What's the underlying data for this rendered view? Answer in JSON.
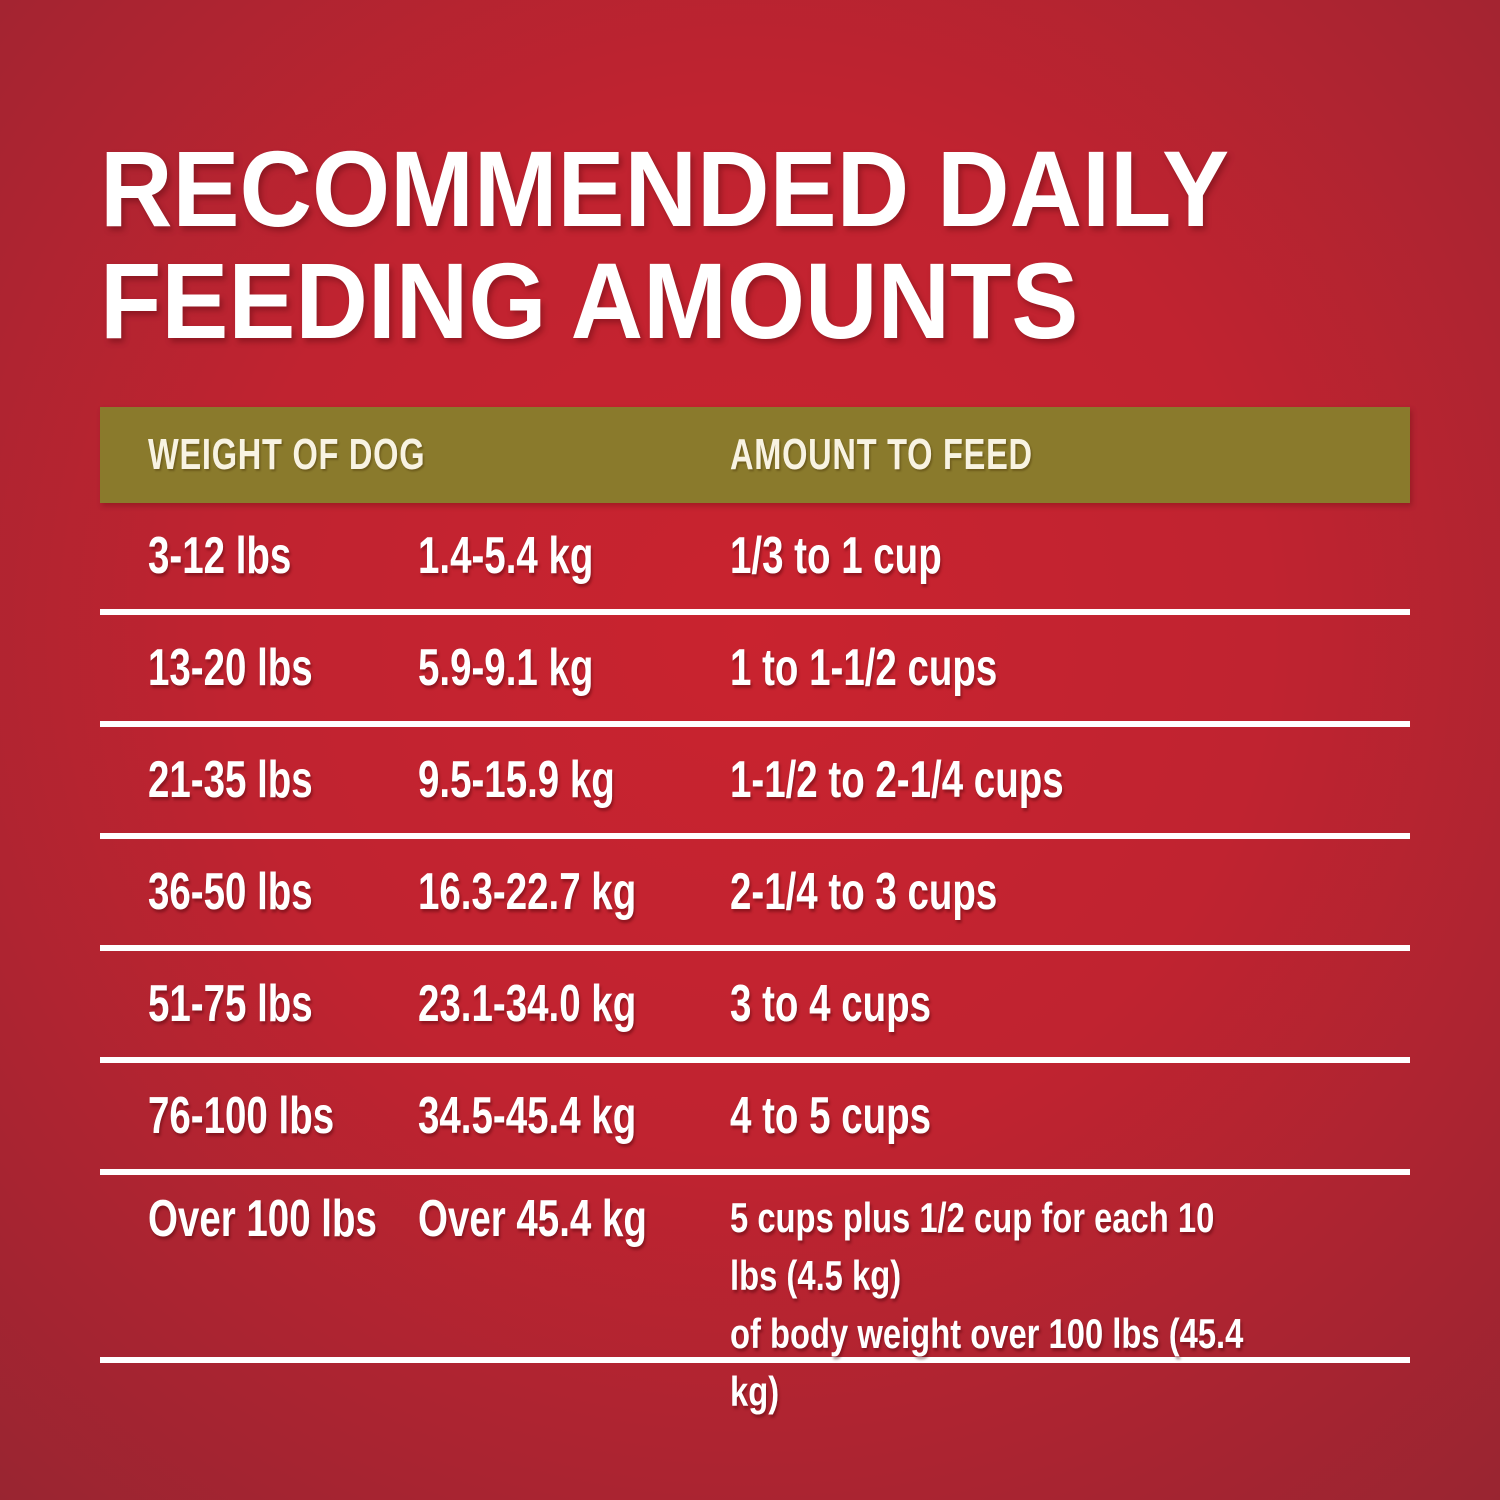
{
  "page": {
    "title_line1": "RECOMMENDED DAILY",
    "title_line2": "FEEDING AMOUNTS"
  },
  "colors": {
    "background_center": "#c9232f",
    "background_edge": "#992531",
    "header_band": "#8a7a2c",
    "title_text": "#ffffff",
    "header_text": "#f8f3e2",
    "row_text": "#ffffff",
    "separator": "#ffffff"
  },
  "table": {
    "headers": [
      "WEIGHT OF DOG",
      "AMOUNT TO FEED"
    ],
    "rows": [
      {
        "lbs": "3-12 lbs",
        "kg": "1.4-5.4 kg",
        "amount": "1/3 to 1 cup"
      },
      {
        "lbs": "13-20 lbs",
        "kg": "5.9-9.1 kg",
        "amount": "1 to 1-1/2 cups"
      },
      {
        "lbs": "21-35 lbs",
        "kg": "9.5-15.9 kg",
        "amount": "1-1/2 to 2-1/4 cups"
      },
      {
        "lbs": "36-50 lbs",
        "kg": "16.3-22.7 kg",
        "amount": "2-1/4 to 3 cups"
      },
      {
        "lbs": "51-75 lbs",
        "kg": "23.1-34.0 kg",
        "amount": "3 to 4 cups"
      },
      {
        "lbs": "76-100 lbs",
        "kg": "34.5-45.4 kg",
        "amount": "4 to 5 cups"
      },
      {
        "lbs": "Over 100 lbs",
        "kg": "Over 45.4 kg",
        "amount": [
          "5 cups plus 1/2 cup for each 10 lbs (4.5 kg)",
          "of body weight over 100 lbs (45.4 kg)"
        ]
      }
    ]
  },
  "chart_data": {
    "type": "table",
    "title": "RECOMMENDED DAILY FEEDING AMOUNTS",
    "columns": [
      "Weight of Dog (lbs)",
      "Weight of Dog (kg)",
      "Amount to Feed"
    ],
    "rows": [
      [
        "3-12 lbs",
        "1.4-5.4 kg",
        "1/3 to 1 cup"
      ],
      [
        "13-20 lbs",
        "5.9-9.1 kg",
        "1 to 1-1/2 cups"
      ],
      [
        "21-35 lbs",
        "9.5-15.9 kg",
        "1-1/2 to 2-1/4 cups"
      ],
      [
        "36-50 lbs",
        "16.3-22.7 kg",
        "2-1/4 to 3 cups"
      ],
      [
        "51-75 lbs",
        "23.1-34.0 kg",
        "3 to 4 cups"
      ],
      [
        "76-100 lbs",
        "34.5-45.4 kg",
        "4 to 5 cups"
      ],
      [
        "Over 100 lbs",
        "Over 45.4 kg",
        "5 cups plus 1/2 cup for each 10 lbs (4.5 kg) of body weight over 100 lbs (45.4 kg)"
      ]
    ]
  }
}
